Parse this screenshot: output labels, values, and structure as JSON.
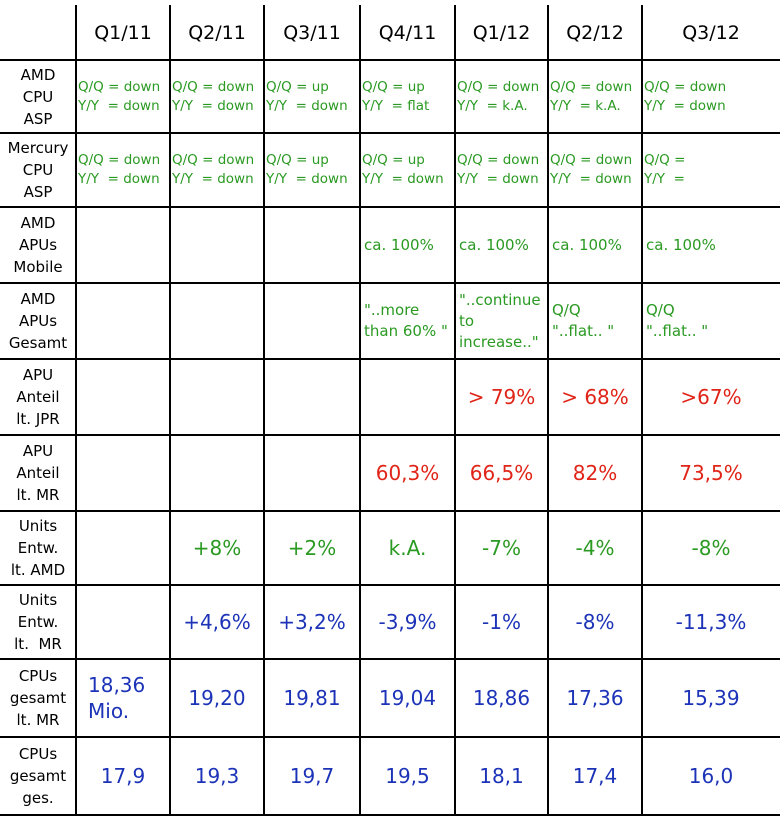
{
  "headers": [
    "Q1/11",
    "Q2/11",
    "Q3/11",
    "Q4/11",
    "Q1/12",
    "Q2/12",
    "Q3/12"
  ],
  "rows": [
    {
      "label": "AMD\nCPU\nASP",
      "style": "small",
      "color": "g",
      "cells": [
        "Q/Q = down\nY/Y  = down",
        "Q/Q = down\nY/Y  = down",
        "Q/Q = up\nY/Y  = down",
        "Q/Q = up\nY/Y  = flat",
        "Q/Q = down\nY/Y  = k.A.",
        "Q/Q = down\nY/Y  = k.A.",
        "Q/Q = down\nY/Y  = down"
      ]
    },
    {
      "label": "Mercury\nCPU\nASP",
      "style": "small",
      "color": "g",
      "cells": [
        "Q/Q = down\nY/Y  = down",
        "Q/Q = down\nY/Y  = down",
        "Q/Q = up\nY/Y  = down",
        "Q/Q = up\nY/Y  = down",
        "Q/Q = down\nY/Y  = down",
        "Q/Q = down\nY/Y  = down",
        "Q/Q =\nY/Y  ="
      ]
    },
    {
      "label": "AMD\nAPUs\nMobile",
      "style": "mid",
      "color": "g",
      "cells": [
        "",
        "",
        "",
        "ca. 100%",
        "ca. 100%",
        "ca. 100%",
        "ca. 100%"
      ]
    },
    {
      "label": "AMD\nAPUs\nGesamt",
      "style": "mid",
      "color": "g",
      "cells": [
        "",
        "",
        "",
        "\"..more\nthan 60% \"",
        "\"..continue\nto\nincrease..\"",
        "Q/Q\n\"..flat.. \"",
        "Q/Q\n\"..flat.. \""
      ]
    },
    {
      "label": "APU\nAnteil\nlt. JPR",
      "style": "big",
      "color": "r",
      "cells": [
        "",
        "",
        "",
        "",
        "> 79%",
        "> 68%",
        ">67%"
      ]
    },
    {
      "label": "APU\nAnteil\nlt. MR",
      "style": "big",
      "color": "r",
      "cells": [
        "",
        "",
        "",
        "60,3%",
        "66,5%",
        "82%",
        "73,5%"
      ]
    },
    {
      "label": "Units\nEntw.\nlt. AMD",
      "style": "big",
      "color": "g",
      "cells": [
        "",
        "+8%",
        "+2%",
        "k.A.",
        "-7%",
        "-4%",
        "-8%"
      ]
    },
    {
      "label": "Units\nEntw.\nlt.  MR",
      "style": "big",
      "color": "b",
      "cells": [
        "",
        "+4,6%",
        "+3,2%",
        "-3,9%",
        "-1%",
        "-8%",
        "-11,3%"
      ]
    },
    {
      "label": "CPUs\ngesamt\nlt. MR",
      "style": "big",
      "color": "b",
      "cells": [
        "18,36\nMio.",
        "19,20",
        "19,81",
        "19,04",
        "18,86",
        "17,36",
        "15,39"
      ]
    },
    {
      "label": "CPUs\ngesamt\nges.",
      "style": "big",
      "color": "b",
      "cells": [
        "17,9",
        "19,3",
        "19,7",
        "19,5",
        "18,1",
        "17,4",
        "16,0"
      ]
    }
  ]
}
